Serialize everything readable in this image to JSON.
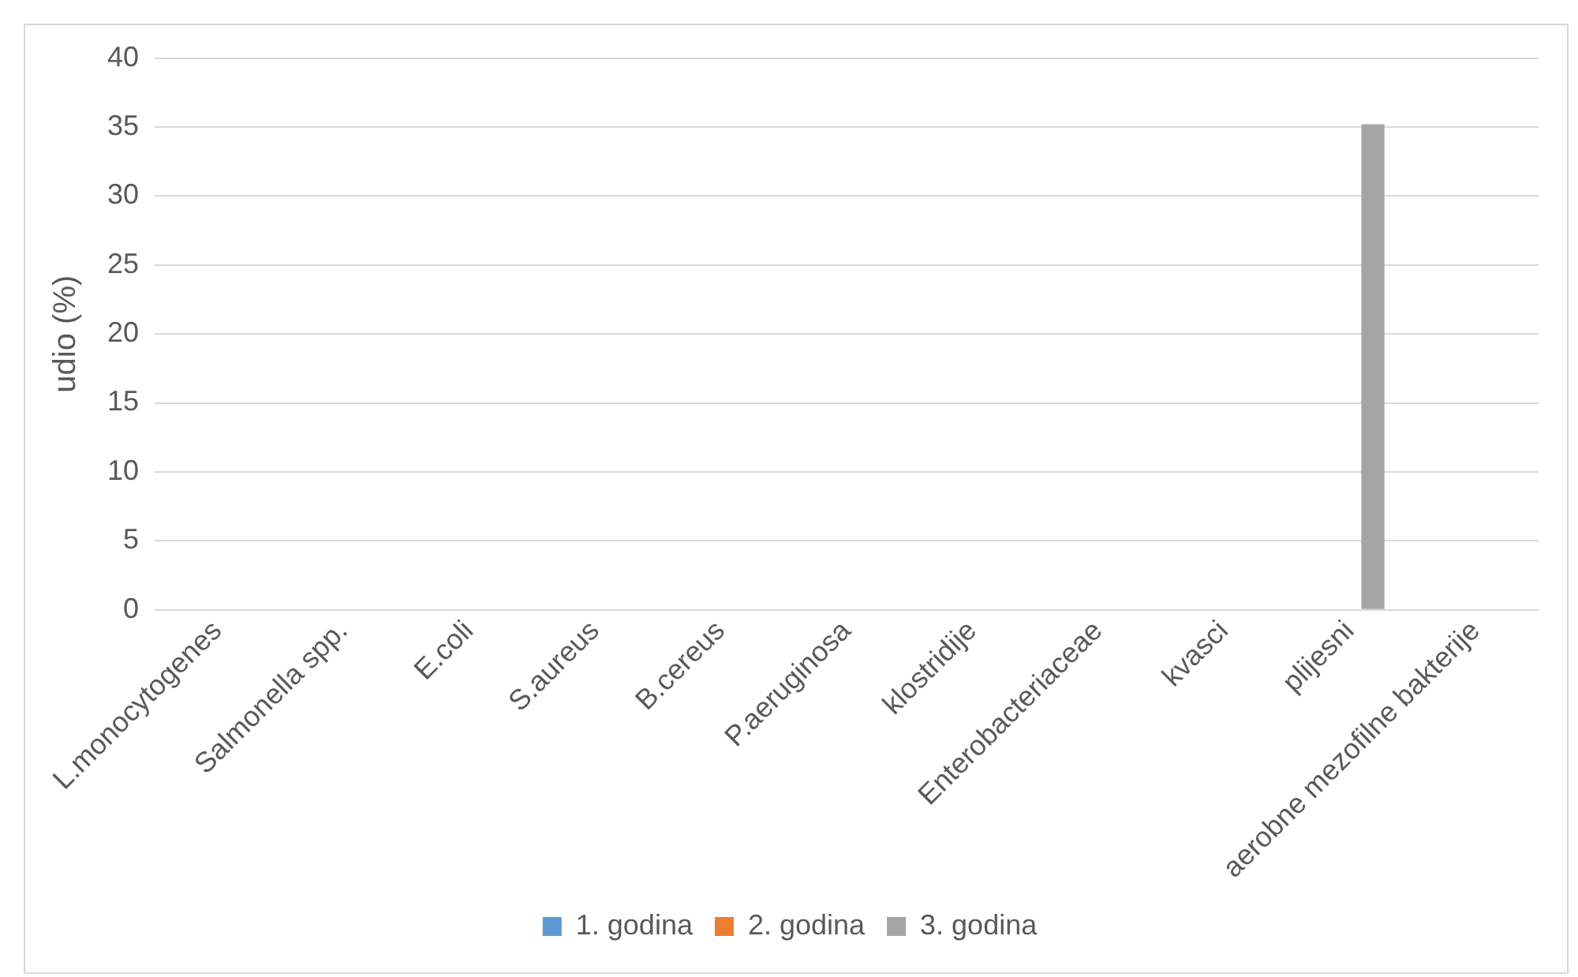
{
  "chart_data": {
    "type": "bar",
    "ylabel": "udio (%)",
    "categories": [
      "L.monocytogenes",
      "Salmonella spp.",
      "E.coli",
      "S.aureus",
      "B.cereus",
      "P.aeruginosa",
      "klostridije",
      "Enterobacteriaceae",
      "kvasci",
      "plijesni",
      "aerobne mezofilne bakterije"
    ],
    "series": [
      {
        "name": "1. godina",
        "color": "#5b9bd5",
        "values": [
          0,
          0,
          0,
          0,
          0,
          0,
          0,
          0,
          0,
          0,
          0
        ]
      },
      {
        "name": "2. godina",
        "color": "#ed7d31",
        "values": [
          0,
          0,
          0,
          0,
          0,
          0,
          0,
          0,
          0,
          0,
          0
        ]
      },
      {
        "name": "3. godina",
        "color": "#a5a5a5",
        "values": [
          0,
          0,
          0,
          0,
          0,
          0,
          0,
          0,
          0,
          35.2,
          0
        ]
      }
    ],
    "ylim": [
      0,
      40
    ],
    "yticks": [
      0,
      5,
      10,
      15,
      20,
      25,
      30,
      35,
      40
    ],
    "grid": "y",
    "legend": "bottom"
  }
}
